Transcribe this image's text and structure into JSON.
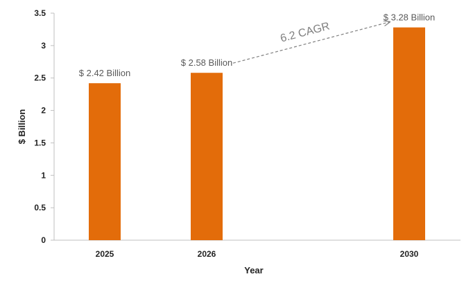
{
  "chart_data": {
    "type": "bar",
    "categories": [
      "2025",
      "2026",
      "2030"
    ],
    "values": [
      2.42,
      2.58,
      3.28
    ],
    "data_labels": [
      "$ 2.42 Billion",
      "$ 2.58 Billion",
      "$ 3.28 Billion"
    ],
    "xlabel": "Year",
    "ylabel": "$ Billion",
    "ylim": [
      0,
      3.5
    ],
    "yticks": [
      0,
      0.5,
      1,
      1.5,
      2,
      2.5,
      3,
      3.5
    ],
    "ytick_labels": [
      "0",
      "0.5",
      "1",
      "1.5",
      "2",
      "2.5",
      "3",
      "3.5"
    ],
    "grid": false,
    "bar_color": "#E36C0A",
    "annotation": {
      "text": "6.2 CAGR",
      "from_category": "2026",
      "to_category": "2030",
      "style": "dashed-arrow",
      "color": "#7f7f7f"
    }
  }
}
